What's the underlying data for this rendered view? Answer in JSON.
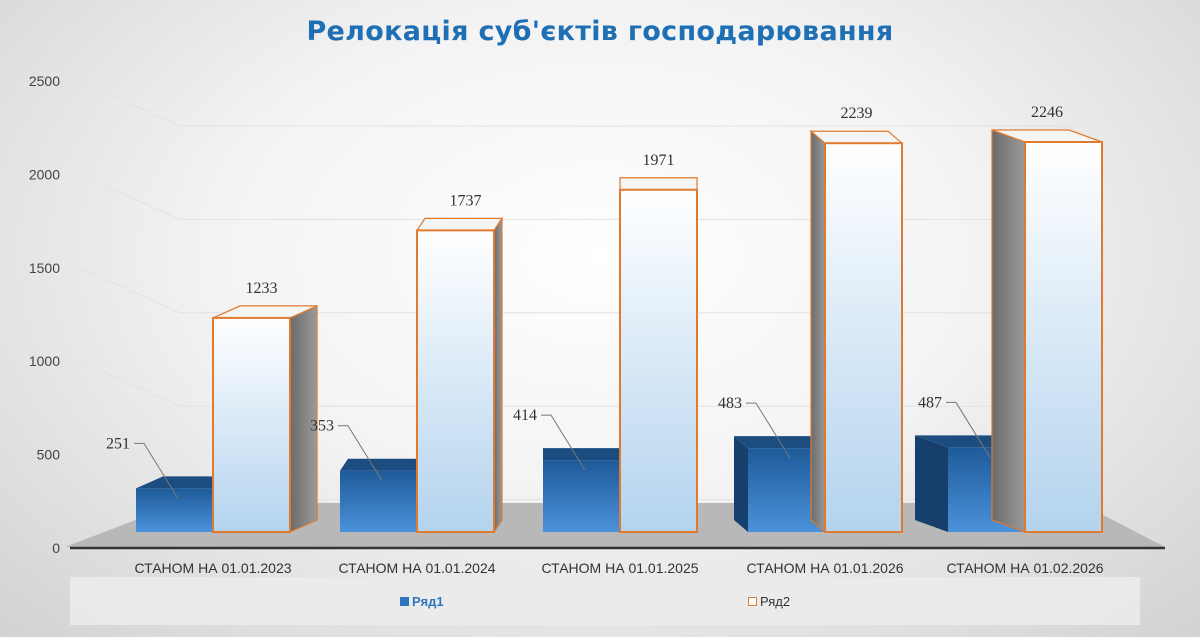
{
  "chart_data": {
    "type": "bar",
    "title": "Релокація суб'єктів господарювання",
    "categories": [
      "СТАНОМ НА 01.01.2023",
      "СТАНОМ НА 01.01.2024",
      "СТАНОМ НА 01.01.2025",
      "СТАНОМ НА 01.01.2026",
      "СТАНОМ НА 01.02.2026"
    ],
    "series": [
      {
        "name": "Ряд1",
        "values": [
          251,
          353,
          414,
          483,
          487
        ],
        "color": "#2f75c0"
      },
      {
        "name": "Ряд2",
        "values": [
          1233,
          1737,
          1971,
          2239,
          2246
        ],
        "color": "#e07a2e"
      }
    ],
    "yticks": [
      "0",
      "500",
      "1000",
      "1500",
      "2000",
      "2500"
    ],
    "ylim": [
      0,
      2500
    ],
    "grid": true,
    "legend": "bottom",
    "style": "3d-clustered-column"
  }
}
